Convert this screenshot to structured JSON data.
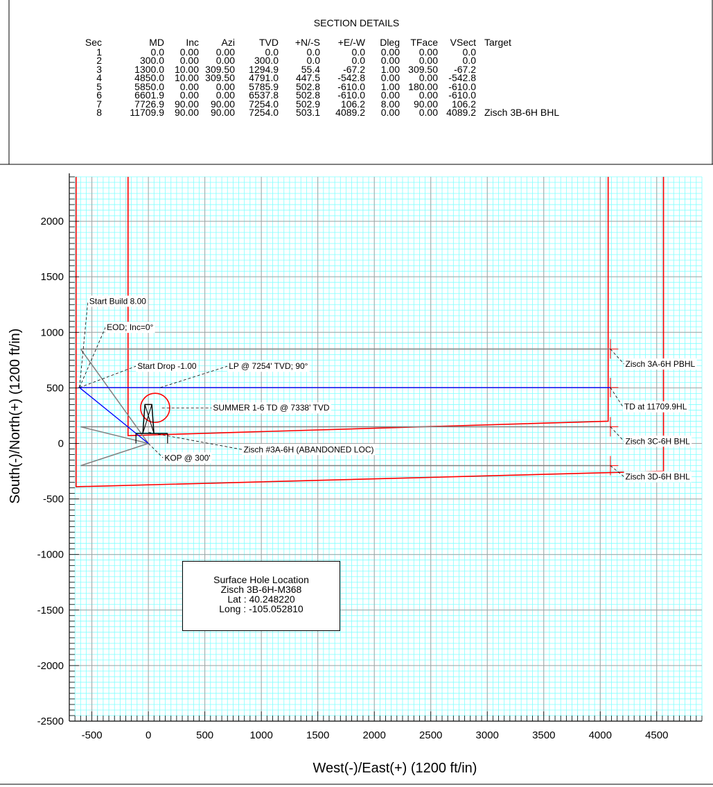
{
  "section_details": {
    "title": "SECTION DETAILS",
    "columns": [
      "Sec",
      "MD",
      "Inc",
      "Azi",
      "TVD",
      "+N/-S",
      "+E/-W",
      "Dleg",
      "TFace",
      "VSect",
      "Target"
    ],
    "rows": [
      [
        "1",
        "0.0",
        "0.00",
        "0.00",
        "0.0",
        "0.0",
        "0.0",
        "0.00",
        "0.00",
        "0.0",
        ""
      ],
      [
        "2",
        "300.0",
        "0.00",
        "0.00",
        "300.0",
        "0.0",
        "0.0",
        "0.00",
        "0.00",
        "0.0",
        ""
      ],
      [
        "3",
        "1300.0",
        "10.00",
        "309.50",
        "1294.9",
        "55.4",
        "-67.2",
        "1.00",
        "309.50",
        "-67.2",
        ""
      ],
      [
        "4",
        "4850.0",
        "10.00",
        "309.50",
        "4791.0",
        "447.5",
        "-542.8",
        "0.00",
        "0.00",
        "-542.8",
        ""
      ],
      [
        "5",
        "5850.0",
        "0.00",
        "0.00",
        "5785.9",
        "502.8",
        "-610.0",
        "1.00",
        "180.00",
        "-610.0",
        ""
      ],
      [
        "6",
        "6601.9",
        "0.00",
        "0.00",
        "6537.8",
        "502.8",
        "-610.0",
        "0.00",
        "0.00",
        "-610.0",
        ""
      ],
      [
        "7",
        "7726.9",
        "90.00",
        "90.00",
        "7254.0",
        "502.9",
        "106.2",
        "8.00",
        "90.00",
        "106.2",
        ""
      ],
      [
        "8",
        "11709.9",
        "90.00",
        "90.00",
        "7254.0",
        "503.1",
        "4089.2",
        "0.00",
        "0.00",
        "4089.2",
        "Zisch 3B-6H BHL"
      ]
    ]
  },
  "chart_data": {
    "type": "scatter",
    "title": "",
    "xlabel": "West(-)/East(+) (1200 ft/in)",
    "ylabel": "South(-)/North(+) (1200 ft/in)",
    "xlim": [
      -700,
      4900
    ],
    "ylim": [
      -2500,
      2400
    ],
    "xticks": [
      -500,
      0,
      500,
      1000,
      1500,
      2000,
      2500,
      3000,
      3500,
      4000,
      4500
    ],
    "yticks": [
      -2500,
      -2000,
      -1500,
      -1000,
      -500,
      0,
      500,
      1000,
      1500,
      2000
    ],
    "grid": true,
    "colors": {
      "grid_minor": "#80ffff",
      "grid_major": "#a0a0a0",
      "wellpath": "#0000ff",
      "boundary": "#ff0000",
      "offset_wells": "#808080"
    },
    "series": [
      {
        "points": [
          [
            0,
            0
          ],
          [
            -67.2,
            55.4
          ],
          [
            -542.8,
            447.5
          ],
          [
            -610,
            502.8
          ],
          [
            -610,
            502.8
          ],
          [
            106.2,
            502.9
          ],
          [
            4089.2,
            503.1
          ]
        ]
      }
    ],
    "offset_wells": [
      {
        "points": [
          [
            -600,
            850
          ],
          [
            4090,
            850
          ]
        ]
      },
      {
        "points": [
          [
            -600,
            150
          ],
          [
            4090,
            150
          ]
        ]
      },
      {
        "points": [
          [
            -600,
            -200
          ],
          [
            4090,
            -200
          ]
        ]
      },
      {
        "points": [
          [
            0,
            0
          ],
          [
            -600,
            850
          ]
        ]
      },
      {
        "points": [
          [
            0,
            0
          ],
          [
            -600,
            150
          ]
        ]
      },
      {
        "points": [
          [
            0,
            0
          ],
          [
            -600,
            -200
          ]
        ]
      }
    ],
    "boundaries": [
      {
        "points": [
          [
            -640,
            2400
          ],
          [
            -640,
            -390
          ],
          [
            4560,
            -250
          ],
          [
            4560,
            2400
          ]
        ]
      },
      {
        "points": [
          [
            -180,
            2400
          ],
          [
            -180,
            70
          ],
          [
            4070,
            200
          ],
          [
            4070,
            2400
          ]
        ]
      }
    ],
    "annotations": [
      {
        "text": "Start Build 8.00",
        "x": -535,
        "y": 1280,
        "at": [
          -610,
          502.8
        ]
      },
      {
        "text": "EOD; Inc=0°",
        "x": -380,
        "y": 1045,
        "at": [
          -610,
          502.8
        ]
      },
      {
        "text": "Start Drop -1.00",
        "x": -110,
        "y": 695,
        "at": [
          -610,
          502.8
        ]
      },
      {
        "text": "LP @ 7254' TVD; 90°",
        "x": 700,
        "y": 695,
        "at": [
          106,
          502.9
        ]
      },
      {
        "text": "SUMMER 1-6 TD @ 7338' TVD",
        "x": 560,
        "y": 320,
        "at": [
          120,
          320
        ]
      },
      {
        "text": "Zisch #3A-6H (ABANDONED LOC)",
        "x": 830,
        "y": -55,
        "at": [
          0,
          100
        ]
      },
      {
        "text": "KOP @ 300'",
        "x": 130,
        "y": -130,
        "at": [
          0,
          0
        ]
      },
      {
        "text": "Zisch 3A-6H PBHL",
        "x": 4210,
        "y": 715,
        "at": [
          4090,
          850
        ]
      },
      {
        "text": "TD at 11709.9HL",
        "x": 4200,
        "y": 330,
        "at": [
          4090,
          503
        ]
      },
      {
        "text": "Zisch 3C-6H BHL",
        "x": 4210,
        "y": 20,
        "at": [
          4090,
          150
        ]
      },
      {
        "text": "Zisch 3D-6H BHL",
        "x": 4210,
        "y": -300,
        "at": [
          4090,
          -200
        ]
      }
    ],
    "surface_hole_location": {
      "title": "Surface Hole Location",
      "well": "Zisch 3B-6H-M368",
      "lat": "Lat : 40.248220",
      "long": "Long : -105.052810"
    }
  }
}
